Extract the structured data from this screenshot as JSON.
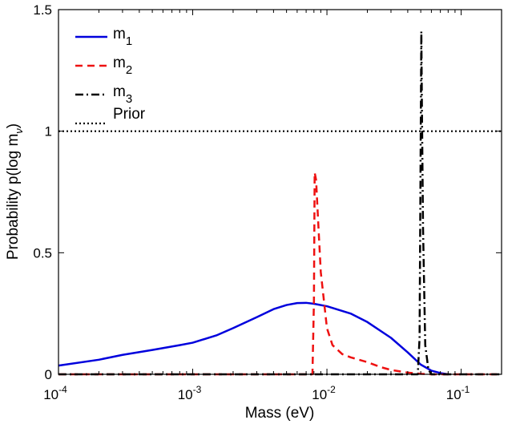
{
  "chart_data": {
    "type": "line",
    "title": "",
    "xlabel": "Mass (eV)",
    "ylabel_main": "Probability p(log m",
    "ylabel_sub": "ν",
    "ylabel_close": ")",
    "xscale": "log",
    "xlim": [
      0.0001,
      0.2
    ],
    "ylim": [
      0,
      1.5
    ],
    "x_ticks": [
      {
        "value": 0.0001,
        "base": "10",
        "exp": "-4"
      },
      {
        "value": 0.001,
        "base": "10",
        "exp": "-3"
      },
      {
        "value": 0.01,
        "base": "10",
        "exp": "-2"
      },
      {
        "value": 0.1,
        "base": "10",
        "exp": "-1"
      }
    ],
    "y_ticks": [
      {
        "value": 0,
        "label": "0"
      },
      {
        "value": 0.5,
        "label": "0.5"
      },
      {
        "value": 1,
        "label": "1"
      },
      {
        "value": 1.5,
        "label": "1.5"
      }
    ],
    "legend_position": "top-left",
    "series": [
      {
        "name": "m",
        "sub": "1",
        "color": "#0000dd",
        "dash": "solid",
        "points": [
          [
            0.0001,
            0.036
          ],
          [
            0.0002,
            0.06
          ],
          [
            0.0003,
            0.08
          ],
          [
            0.0005,
            0.1
          ],
          [
            0.0008,
            0.12
          ],
          [
            0.001,
            0.13
          ],
          [
            0.0015,
            0.16
          ],
          [
            0.002,
            0.19
          ],
          [
            0.003,
            0.235
          ],
          [
            0.004,
            0.268
          ],
          [
            0.005,
            0.285
          ],
          [
            0.006,
            0.293
          ],
          [
            0.007,
            0.294
          ],
          [
            0.008,
            0.29
          ],
          [
            0.01,
            0.28
          ],
          [
            0.015,
            0.25
          ],
          [
            0.02,
            0.215
          ],
          [
            0.03,
            0.15
          ],
          [
            0.04,
            0.09
          ],
          [
            0.05,
            0.04
          ],
          [
            0.06,
            0.015
          ],
          [
            0.07,
            0.005
          ],
          [
            0.08,
            0.0
          ]
        ]
      },
      {
        "name": "m",
        "sub": "2",
        "color": "#ee1111",
        "dash": "dashed",
        "points": [
          [
            0.0001,
            0.0
          ],
          [
            0.0078,
            0.0
          ],
          [
            0.008,
            0.3
          ],
          [
            0.0081,
            0.83
          ],
          [
            0.0083,
            0.8
          ],
          [
            0.0086,
            0.63
          ],
          [
            0.009,
            0.42
          ],
          [
            0.01,
            0.19
          ],
          [
            0.011,
            0.12
          ],
          [
            0.013,
            0.083
          ],
          [
            0.015,
            0.07
          ],
          [
            0.02,
            0.05
          ],
          [
            0.025,
            0.03
          ],
          [
            0.03,
            0.018
          ],
          [
            0.04,
            0.007
          ],
          [
            0.05,
            0.002
          ],
          [
            0.06,
            0.0
          ],
          [
            0.2,
            0.0
          ]
        ]
      },
      {
        "name": "m",
        "sub": "3",
        "color": "#000000",
        "dash": "dashdot",
        "points": [
          [
            0.0001,
            0.0
          ],
          [
            0.0475,
            0.0
          ],
          [
            0.049,
            0.15
          ],
          [
            0.05,
            1.0
          ],
          [
            0.0505,
            1.41
          ],
          [
            0.051,
            1.1
          ],
          [
            0.052,
            0.6
          ],
          [
            0.054,
            0.12
          ],
          [
            0.057,
            0.02
          ],
          [
            0.06,
            0.0
          ],
          [
            0.2,
            0.0
          ]
        ]
      },
      {
        "name": "Prior",
        "sub": "",
        "color": "#000000",
        "dash": "dotted",
        "points": [
          [
            0.0001,
            1.0
          ],
          [
            0.2,
            1.0
          ]
        ]
      }
    ]
  }
}
